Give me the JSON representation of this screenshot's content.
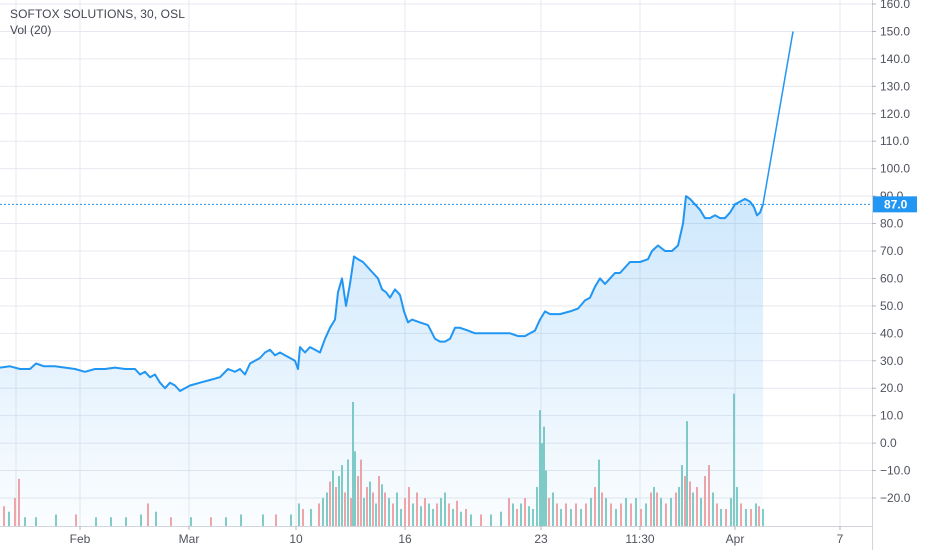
{
  "legend": {
    "title": "SOFTOX SOLUTIONS, 30, OSL",
    "volume_label": "Vol (20)"
  },
  "colors": {
    "line": "#2196f3",
    "area_top": "#2196f3",
    "vol_up": "#83cdc5",
    "vol_down": "#f5a5a5",
    "last_badge": "#2196f3",
    "grid": "#e6e9ef"
  },
  "chart_data": {
    "type": "area",
    "title": "",
    "xlabel": "",
    "ylabel": "",
    "ylim": [
      -30,
      160
    ],
    "y_ticks": [
      "160.0",
      "150.0",
      "140.0",
      "130.0",
      "120.0",
      "110.0",
      "100.0",
      "90.0",
      "80.0",
      "70.0",
      "60.0",
      "50.0",
      "40.0",
      "30.0",
      "20.0",
      "10.0",
      "0.0",
      "−10.0",
      "−20.0"
    ],
    "x_ticks": [
      "Feb",
      "Mar",
      "10",
      "16",
      "23",
      "11:30",
      "Apr",
      "7"
    ],
    "last_value": "87.0",
    "grid": true,
    "series": [
      {
        "kind": "price",
        "points": [
          [
            0,
            27.5
          ],
          [
            10,
            28
          ],
          [
            20,
            27
          ],
          [
            30,
            27
          ],
          [
            36,
            29
          ],
          [
            44,
            28
          ],
          [
            55,
            28
          ],
          [
            65,
            27.5
          ],
          [
            75,
            27
          ],
          [
            85,
            26
          ],
          [
            95,
            27
          ],
          [
            105,
            27
          ],
          [
            115,
            27.5
          ],
          [
            125,
            27
          ],
          [
            135,
            27
          ],
          [
            140,
            25
          ],
          [
            145,
            26
          ],
          [
            150,
            24
          ],
          [
            155,
            25
          ],
          [
            160,
            22
          ],
          [
            165,
            20
          ],
          [
            170,
            22
          ],
          [
            175,
            21
          ],
          [
            180,
            19
          ],
          [
            185,
            20
          ],
          [
            190,
            21
          ],
          [
            200,
            22
          ],
          [
            210,
            23
          ],
          [
            220,
            24
          ],
          [
            228,
            27
          ],
          [
            235,
            26
          ],
          [
            240,
            27
          ],
          [
            245,
            25
          ],
          [
            250,
            29
          ],
          [
            255,
            30
          ],
          [
            260,
            31
          ],
          [
            265,
            33
          ],
          [
            270,
            34
          ],
          [
            275,
            32
          ],
          [
            280,
            33
          ],
          [
            285,
            32
          ],
          [
            290,
            31
          ],
          [
            295,
            30
          ],
          [
            298,
            27
          ],
          [
            300,
            35
          ],
          [
            305,
            33
          ],
          [
            310,
            35
          ],
          [
            315,
            34
          ],
          [
            320,
            33
          ],
          [
            325,
            38
          ],
          [
            330,
            42
          ],
          [
            335,
            45
          ],
          [
            338,
            55
          ],
          [
            342,
            60
          ],
          [
            346,
            50
          ],
          [
            350,
            58
          ],
          [
            354,
            68
          ],
          [
            358,
            67
          ],
          [
            363,
            66
          ],
          [
            368,
            64
          ],
          [
            373,
            62
          ],
          [
            378,
            60
          ],
          [
            382,
            56
          ],
          [
            386,
            55
          ],
          [
            390,
            53
          ],
          [
            395,
            56
          ],
          [
            400,
            54
          ],
          [
            404,
            48
          ],
          [
            408,
            44
          ],
          [
            412,
            45
          ],
          [
            420,
            44
          ],
          [
            428,
            43
          ],
          [
            435,
            38
          ],
          [
            440,
            37
          ],
          [
            445,
            37
          ],
          [
            450,
            38
          ],
          [
            455,
            42
          ],
          [
            460,
            42
          ],
          [
            468,
            41
          ],
          [
            475,
            40
          ],
          [
            482,
            40
          ],
          [
            490,
            40
          ],
          [
            500,
            40
          ],
          [
            510,
            40
          ],
          [
            518,
            39
          ],
          [
            525,
            39
          ],
          [
            530,
            40
          ],
          [
            535,
            41
          ],
          [
            540,
            45
          ],
          [
            545,
            48
          ],
          [
            550,
            47
          ],
          [
            560,
            47
          ],
          [
            570,
            48
          ],
          [
            578,
            49
          ],
          [
            585,
            52
          ],
          [
            590,
            53
          ],
          [
            595,
            57
          ],
          [
            600,
            60
          ],
          [
            605,
            58
          ],
          [
            610,
            60
          ],
          [
            615,
            62
          ],
          [
            620,
            62
          ],
          [
            625,
            64
          ],
          [
            630,
            66
          ],
          [
            640,
            66
          ],
          [
            648,
            67
          ],
          [
            652,
            70
          ],
          [
            658,
            72
          ],
          [
            665,
            70
          ],
          [
            672,
            70
          ],
          [
            678,
            72
          ],
          [
            683,
            80
          ],
          [
            686,
            90
          ],
          [
            690,
            89
          ],
          [
            695,
            87
          ],
          [
            700,
            85
          ],
          [
            705,
            82
          ],
          [
            710,
            82
          ],
          [
            715,
            83
          ],
          [
            720,
            82
          ],
          [
            725,
            82
          ],
          [
            730,
            84
          ],
          [
            735,
            87
          ],
          [
            740,
            88
          ],
          [
            745,
            89
          ],
          [
            750,
            88
          ],
          [
            754,
            86
          ],
          [
            757,
            83
          ],
          [
            760,
            84
          ],
          [
            763,
            87
          ]
        ]
      },
      {
        "kind": "projection",
        "points": [
          [
            763,
            87
          ],
          [
            793,
            150
          ]
        ]
      }
    ],
    "volume": {
      "note": "volume bars shown at bottom; positions relative to series x",
      "bars": [
        [
          3,
          -23,
          "d"
        ],
        [
          8,
          -25,
          "u"
        ],
        [
          14,
          -20,
          "d"
        ],
        [
          18,
          -13,
          "d"
        ],
        [
          24,
          -27,
          "u"
        ],
        [
          35,
          -27,
          "u"
        ],
        [
          55,
          -26,
          "u"
        ],
        [
          75,
          -26,
          "d"
        ],
        [
          95,
          -27,
          "u"
        ],
        [
          110,
          -27,
          "u"
        ],
        [
          125,
          -27,
          "u"
        ],
        [
          140,
          -26,
          "u"
        ],
        [
          147,
          -22,
          "d"
        ],
        [
          155,
          -25,
          "u"
        ],
        [
          170,
          -27,
          "d"
        ],
        [
          190,
          -27,
          "u"
        ],
        [
          210,
          -27,
          "d"
        ],
        [
          225,
          -27,
          "u"
        ],
        [
          240,
          -26,
          "u"
        ],
        [
          262,
          -26,
          "u"
        ],
        [
          275,
          -26,
          "d"
        ],
        [
          290,
          -26,
          "u"
        ],
        [
          298,
          -22,
          "u"
        ],
        [
          302,
          -24,
          "d"
        ],
        [
          310,
          -24,
          "u"
        ],
        [
          318,
          -22,
          "d"
        ],
        [
          322,
          -20,
          "u"
        ],
        [
          326,
          -18,
          "u"
        ],
        [
          329,
          -14,
          "d"
        ],
        [
          332,
          -10,
          "u"
        ],
        [
          335,
          -16,
          "d"
        ],
        [
          338,
          -12,
          "u"
        ],
        [
          341,
          -8,
          "u"
        ],
        [
          344,
          -18,
          "d"
        ],
        [
          347,
          -6,
          "u"
        ],
        [
          350,
          -20,
          "d"
        ],
        [
          352,
          15,
          "u"
        ],
        [
          354,
          -3,
          "u"
        ],
        [
          357,
          -12,
          "d"
        ],
        [
          360,
          -6,
          "d"
        ],
        [
          363,
          -20,
          "u"
        ],
        [
          366,
          -16,
          "d"
        ],
        [
          369,
          -14,
          "u"
        ],
        [
          372,
          -18,
          "d"
        ],
        [
          375,
          -22,
          "u"
        ],
        [
          378,
          -12,
          "d"
        ],
        [
          381,
          -15,
          "u"
        ],
        [
          384,
          -18,
          "d"
        ],
        [
          388,
          -20,
          "u"
        ],
        [
          392,
          -22,
          "d"
        ],
        [
          396,
          -18,
          "u"
        ],
        [
          400,
          -24,
          "u"
        ],
        [
          404,
          -20,
          "d"
        ],
        [
          408,
          -16,
          "d"
        ],
        [
          412,
          -22,
          "u"
        ],
        [
          416,
          -18,
          "d"
        ],
        [
          420,
          -23,
          "u"
        ],
        [
          424,
          -20,
          "d"
        ],
        [
          428,
          -22,
          "u"
        ],
        [
          432,
          -24,
          "u"
        ],
        [
          436,
          -22,
          "d"
        ],
        [
          440,
          -20,
          "u"
        ],
        [
          444,
          -18,
          "u"
        ],
        [
          448,
          -22,
          "d"
        ],
        [
          452,
          -24,
          "u"
        ],
        [
          456,
          -21,
          "d"
        ],
        [
          460,
          -25,
          "u"
        ],
        [
          465,
          -24,
          "d"
        ],
        [
          470,
          -26,
          "u"
        ],
        [
          480,
          -26,
          "d"
        ],
        [
          490,
          -26,
          "u"
        ],
        [
          500,
          -25,
          "u"
        ],
        [
          508,
          -20,
          "d"
        ],
        [
          512,
          -22,
          "u"
        ],
        [
          516,
          -24,
          "d"
        ],
        [
          520,
          -22,
          "u"
        ],
        [
          524,
          -20,
          "d"
        ],
        [
          528,
          -23,
          "u"
        ],
        [
          532,
          -24,
          "u"
        ],
        [
          536,
          -16,
          "u"
        ],
        [
          539,
          12,
          "u"
        ],
        [
          541,
          0,
          "u"
        ],
        [
          543,
          6,
          "u"
        ],
        [
          545,
          -10,
          "u"
        ],
        [
          548,
          -20,
          "d"
        ],
        [
          552,
          -18,
          "u"
        ],
        [
          556,
          -22,
          "d"
        ],
        [
          560,
          -24,
          "u"
        ],
        [
          565,
          -22,
          "d"
        ],
        [
          570,
          -24,
          "u"
        ],
        [
          575,
          -22,
          "d"
        ],
        [
          580,
          -24,
          "u"
        ],
        [
          585,
          -22,
          "d"
        ],
        [
          590,
          -20,
          "u"
        ],
        [
          594,
          -16,
          "d"
        ],
        [
          598,
          -6,
          "u"
        ],
        [
          601,
          -18,
          "d"
        ],
        [
          605,
          -20,
          "u"
        ],
        [
          610,
          -22,
          "d"
        ],
        [
          615,
          -24,
          "u"
        ],
        [
          620,
          -22,
          "d"
        ],
        [
          625,
          -20,
          "u"
        ],
        [
          630,
          -22,
          "d"
        ],
        [
          635,
          -20,
          "u"
        ],
        [
          640,
          -24,
          "d"
        ],
        [
          645,
          -22,
          "u"
        ],
        [
          650,
          -18,
          "d"
        ],
        [
          653,
          -16,
          "u"
        ],
        [
          656,
          -18,
          "d"
        ],
        [
          660,
          -20,
          "u"
        ],
        [
          665,
          -22,
          "d"
        ],
        [
          670,
          -20,
          "u"
        ],
        [
          675,
          -18,
          "d"
        ],
        [
          678,
          -16,
          "u"
        ],
        [
          681,
          -8,
          "u"
        ],
        [
          684,
          -12,
          "d"
        ],
        [
          686,
          8,
          "u"
        ],
        [
          689,
          -14,
          "d"
        ],
        [
          692,
          -18,
          "u"
        ],
        [
          696,
          -16,
          "d"
        ],
        [
          700,
          -20,
          "u"
        ],
        [
          704,
          -12,
          "d"
        ],
        [
          708,
          -8,
          "d"
        ],
        [
          712,
          -18,
          "u"
        ],
        [
          716,
          -22,
          "d"
        ],
        [
          720,
          -24,
          "u"
        ],
        [
          725,
          -24,
          "d"
        ],
        [
          730,
          -20,
          "u"
        ],
        [
          733,
          18,
          "u"
        ],
        [
          736,
          -16,
          "u"
        ],
        [
          740,
          -22,
          "d"
        ],
        [
          745,
          -24,
          "u"
        ],
        [
          750,
          -24,
          "d"
        ],
        [
          755,
          -22,
          "u"
        ],
        [
          758,
          -23,
          "d"
        ],
        [
          762,
          -24,
          "u"
        ]
      ]
    }
  }
}
